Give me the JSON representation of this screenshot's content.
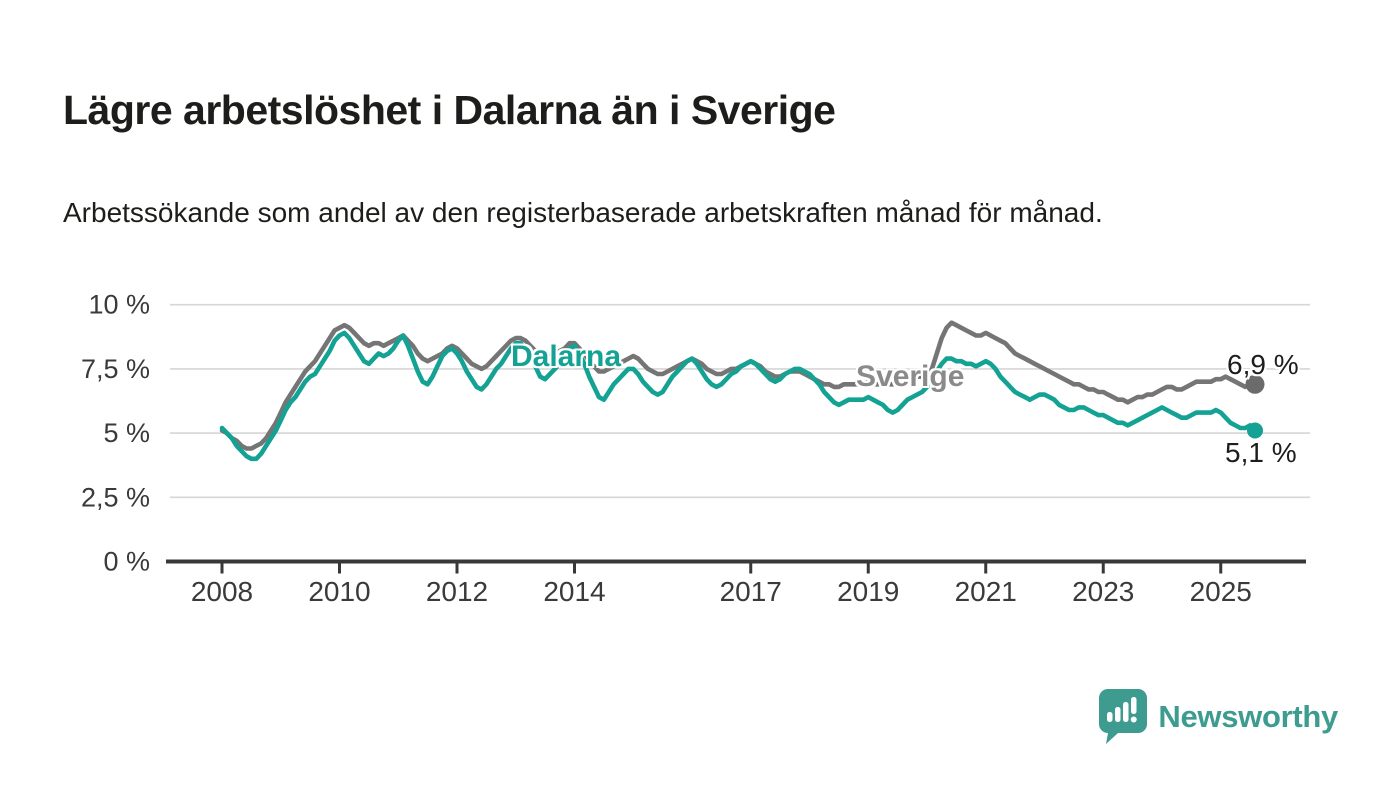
{
  "header": {
    "title": "Lägre arbetslöshet i Dalarna än i Sverige",
    "subtitle": "Arbetssökande som andel av den registerbaserade arbetskraften månad för månad."
  },
  "colors": {
    "dalarna": "#13a294",
    "sverige_line": "#757575",
    "sverige_label": "#8a8a8a",
    "sverige_dot": "#6b6b6b",
    "grid": "#d6d6d6",
    "axis": "#383838",
    "tick_text": "#3a3a3a",
    "text_dark": "#1d1d1b",
    "brand": "#3d9b8f"
  },
  "chart_data": {
    "type": "line",
    "title": "Lägre arbetslöshet i Dalarna än i Sverige",
    "xlabel": "",
    "ylabel": "Arbetssökande som andel av den registerbaserade arbetskraften",
    "x_start_year": 2008,
    "x_step_months": 1,
    "x_end": "2025-08",
    "grid": true,
    "legend_position": "inline-on-line",
    "y_axis": {
      "tick_values": [
        0,
        2.5,
        5,
        7.5,
        10
      ],
      "tick_labels": [
        "0 %",
        "2,5 %",
        "5 %",
        "7,5 %",
        "10 %"
      ],
      "ylim": [
        0,
        10.5
      ]
    },
    "x_axis": {
      "tick_values": [
        2008,
        2010,
        2012,
        2014,
        2017,
        2019,
        2021,
        2023,
        2025
      ],
      "tick_labels": [
        "2008",
        "2010",
        "2012",
        "2014",
        "2017",
        "2019",
        "2021",
        "2023",
        "2025"
      ]
    },
    "series": [
      {
        "name": "Sverige",
        "color": "#757575",
        "label_color": "#8a8a8a",
        "dot_color": "#6b6b6b",
        "end_value": 6.9,
        "end_label": "6,9 %",
        "values": [
          5.1,
          5.0,
          4.8,
          4.7,
          4.5,
          4.4,
          4.4,
          4.5,
          4.6,
          4.8,
          5.1,
          5.4,
          5.8,
          6.2,
          6.5,
          6.8,
          7.1,
          7.4,
          7.6,
          7.8,
          8.1,
          8.4,
          8.7,
          9.0,
          9.1,
          9.2,
          9.1,
          8.9,
          8.7,
          8.5,
          8.4,
          8.5,
          8.5,
          8.4,
          8.5,
          8.6,
          8.7,
          8.8,
          8.6,
          8.4,
          8.1,
          7.9,
          7.8,
          7.9,
          8.0,
          8.1,
          8.3,
          8.4,
          8.3,
          8.1,
          7.9,
          7.7,
          7.6,
          7.5,
          7.6,
          7.8,
          8.0,
          8.2,
          8.4,
          8.6,
          8.7,
          8.7,
          8.6,
          8.4,
          8.2,
          8.0,
          7.9,
          8.0,
          8.1,
          8.2,
          8.3,
          8.5,
          8.5,
          8.3,
          8.1,
          7.8,
          7.6,
          7.4,
          7.4,
          7.5,
          7.6,
          7.7,
          7.8,
          7.9,
          8.0,
          7.9,
          7.7,
          7.5,
          7.4,
          7.3,
          7.3,
          7.4,
          7.5,
          7.6,
          7.7,
          7.8,
          7.9,
          7.8,
          7.7,
          7.5,
          7.4,
          7.3,
          7.3,
          7.4,
          7.5,
          7.5,
          7.6,
          7.7,
          7.8,
          7.7,
          7.6,
          7.4,
          7.3,
          7.2,
          7.2,
          7.3,
          7.4,
          7.4,
          7.4,
          7.3,
          7.2,
          7.1,
          7.0,
          6.9,
          6.9,
          6.8,
          6.8,
          6.9,
          6.9,
          6.9,
          6.9,
          6.9,
          7.0,
          6.9,
          6.9,
          6.9,
          6.9,
          6.9,
          7.0,
          7.0,
          7.1,
          7.1,
          7.2,
          7.2,
          7.3,
          7.5,
          8.1,
          8.7,
          9.1,
          9.3,
          9.2,
          9.1,
          9.0,
          8.9,
          8.8,
          8.8,
          8.9,
          8.8,
          8.7,
          8.6,
          8.5,
          8.3,
          8.1,
          8.0,
          7.9,
          7.8,
          7.7,
          7.6,
          7.5,
          7.4,
          7.3,
          7.2,
          7.1,
          7.0,
          6.9,
          6.9,
          6.8,
          6.7,
          6.7,
          6.6,
          6.6,
          6.5,
          6.4,
          6.3,
          6.3,
          6.2,
          6.3,
          6.4,
          6.4,
          6.5,
          6.5,
          6.6,
          6.7,
          6.8,
          6.8,
          6.7,
          6.7,
          6.8,
          6.9,
          7.0,
          7.0,
          7.0,
          7.0,
          7.1,
          7.1,
          7.2,
          7.1,
          7.0,
          6.9,
          6.8,
          6.9,
          6.9
        ]
      },
      {
        "name": "Dalarna",
        "color": "#13a294",
        "label_color": "#13a294",
        "dot_color": "#13a294",
        "end_value": 5.1,
        "end_label": "5,1 %",
        "values": [
          5.2,
          5.0,
          4.8,
          4.5,
          4.3,
          4.1,
          4.0,
          4.0,
          4.2,
          4.5,
          4.8,
          5.1,
          5.5,
          5.9,
          6.2,
          6.4,
          6.7,
          7.0,
          7.2,
          7.3,
          7.6,
          7.9,
          8.2,
          8.6,
          8.8,
          8.9,
          8.7,
          8.4,
          8.1,
          7.8,
          7.7,
          7.9,
          8.1,
          8.0,
          8.1,
          8.3,
          8.6,
          8.8,
          8.4,
          7.9,
          7.4,
          7.0,
          6.9,
          7.2,
          7.6,
          8.0,
          8.2,
          8.3,
          8.1,
          7.8,
          7.4,
          7.1,
          6.8,
          6.7,
          6.9,
          7.2,
          7.5,
          7.7,
          8.0,
          8.3,
          8.5,
          8.5,
          8.3,
          8.0,
          7.6,
          7.2,
          7.1,
          7.3,
          7.5,
          7.7,
          8.0,
          8.3,
          8.4,
          8.1,
          7.7,
          7.2,
          6.8,
          6.4,
          6.3,
          6.6,
          6.9,
          7.1,
          7.3,
          7.5,
          7.5,
          7.3,
          7.0,
          6.8,
          6.6,
          6.5,
          6.6,
          6.9,
          7.2,
          7.4,
          7.6,
          7.8,
          7.9,
          7.7,
          7.4,
          7.1,
          6.9,
          6.8,
          6.9,
          7.1,
          7.3,
          7.4,
          7.6,
          7.7,
          7.8,
          7.7,
          7.5,
          7.3,
          7.1,
          7.0,
          7.1,
          7.3,
          7.4,
          7.5,
          7.5,
          7.4,
          7.3,
          7.1,
          6.9,
          6.6,
          6.4,
          6.2,
          6.1,
          6.2,
          6.3,
          6.3,
          6.3,
          6.3,
          6.4,
          6.3,
          6.2,
          6.1,
          5.9,
          5.8,
          5.9,
          6.1,
          6.3,
          6.4,
          6.5,
          6.6,
          6.8,
          7.0,
          7.4,
          7.7,
          7.9,
          7.9,
          7.8,
          7.8,
          7.7,
          7.7,
          7.6,
          7.7,
          7.8,
          7.7,
          7.5,
          7.2,
          7.0,
          6.8,
          6.6,
          6.5,
          6.4,
          6.3,
          6.4,
          6.5,
          6.5,
          6.4,
          6.3,
          6.1,
          6.0,
          5.9,
          5.9,
          6.0,
          6.0,
          5.9,
          5.8,
          5.7,
          5.7,
          5.6,
          5.5,
          5.4,
          5.4,
          5.3,
          5.4,
          5.5,
          5.6,
          5.7,
          5.8,
          5.9,
          6.0,
          5.9,
          5.8,
          5.7,
          5.6,
          5.6,
          5.7,
          5.8,
          5.8,
          5.8,
          5.8,
          5.9,
          5.8,
          5.6,
          5.4,
          5.3,
          5.2,
          5.2,
          5.3,
          5.1
        ]
      }
    ]
  },
  "branding": {
    "logo_text": "Newsworthy",
    "logo_icon": "bar-chart-speech-bubble-icon"
  }
}
